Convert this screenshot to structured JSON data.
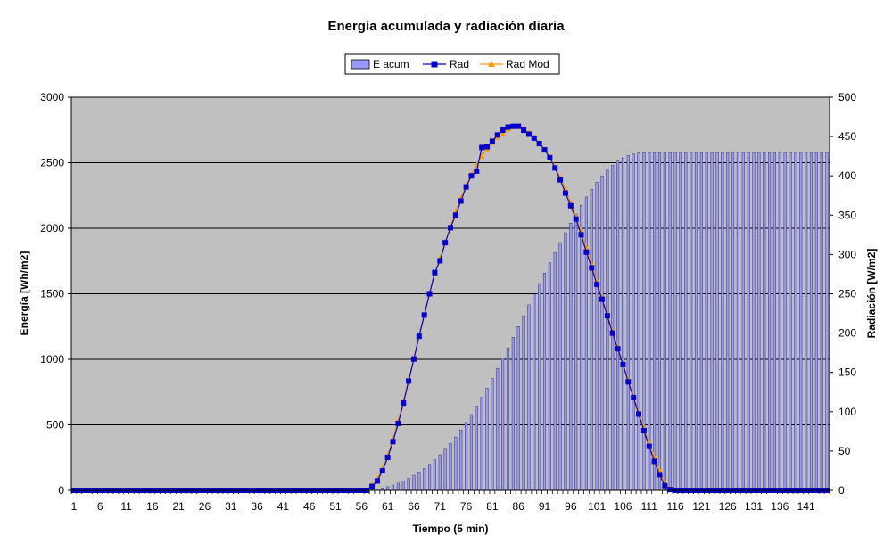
{
  "chart_data": {
    "type": "bar+line",
    "title": "Energía acumulada y radiación diaria",
    "xlabel": "Tiempo (5 min)",
    "ylabel": "Energía [Wh/m2]",
    "y2label": "Radiación [W/m2]",
    "ylim": [
      0,
      3000
    ],
    "y2lim": [
      0,
      500
    ],
    "yticks": [
      0,
      500,
      1000,
      1500,
      2000,
      2500,
      3000
    ],
    "y2ticks": [
      0,
      50,
      100,
      150,
      200,
      250,
      300,
      350,
      400,
      450,
      500
    ],
    "xticks": [
      1,
      6,
      11,
      16,
      21,
      26,
      31,
      36,
      41,
      46,
      51,
      56,
      61,
      66,
      71,
      76,
      81,
      86,
      91,
      96,
      101,
      106,
      111,
      116,
      121,
      126,
      131,
      136,
      141
    ],
    "x_start": 1,
    "x_count": 145,
    "grid": true,
    "legend_position": "top",
    "background_color": "#c0c0c0",
    "series": [
      {
        "name": "E acum",
        "kind": "bar",
        "axis": "left",
        "color": "#9999ff",
        "x_from": 57,
        "values": [
          2,
          5,
          10,
          18,
          28,
          40,
          55,
          73,
          92,
          115,
          140,
          168,
          199,
          234,
          272,
          314,
          359,
          408,
          461,
          518,
          578,
          642,
          710,
          780,
          855,
          931,
          1008,
          1087,
          1167,
          1250,
          1333,
          1415,
          1497,
          1578,
          1658,
          1737,
          1815,
          1891,
          1966,
          2039,
          2109,
          2176,
          2239,
          2298,
          2352,
          2400,
          2443,
          2481,
          2512,
          2537,
          2555,
          2567,
          2574,
          2577,
          2578
        ],
        "after_value": 2578
      },
      {
        "name": "Rad",
        "kind": "line",
        "axis": "right",
        "color": "#0000cc",
        "marker": "square",
        "x_from": 58,
        "values": [
          5,
          12,
          25,
          42,
          62,
          85,
          111,
          139,
          167,
          196,
          223,
          250,
          277,
          292,
          315,
          334,
          350,
          368,
          386,
          400,
          406,
          436,
          437,
          444,
          452,
          458,
          462,
          463,
          463,
          458,
          453,
          448,
          441,
          433,
          423,
          410,
          395,
          378,
          362,
          345,
          325,
          303,
          283,
          262,
          243,
          222,
          200,
          180,
          160,
          138,
          118,
          97,
          76,
          56,
          37,
          20,
          6,
          1
        ]
      },
      {
        "name": "Rad Mod",
        "kind": "line",
        "axis": "right",
        "color": "#ff9900",
        "marker": "triangle",
        "x_from": 58,
        "values": [
          7,
          15,
          28,
          45,
          66,
          89,
          114,
          141,
          169,
          197,
          224,
          251,
          276,
          296,
          316,
          336,
          355,
          372,
          388,
          402,
          414,
          425,
          434,
          442,
          449,
          454,
          459,
          462,
          463,
          460,
          455,
          449,
          442,
          434,
          424,
          412,
          398,
          383,
          366,
          348,
          330,
          309,
          288,
          266,
          245,
          224,
          203,
          182,
          161,
          141,
          120,
          100,
          80,
          61,
          43,
          26,
          10,
          2
        ]
      }
    ]
  }
}
